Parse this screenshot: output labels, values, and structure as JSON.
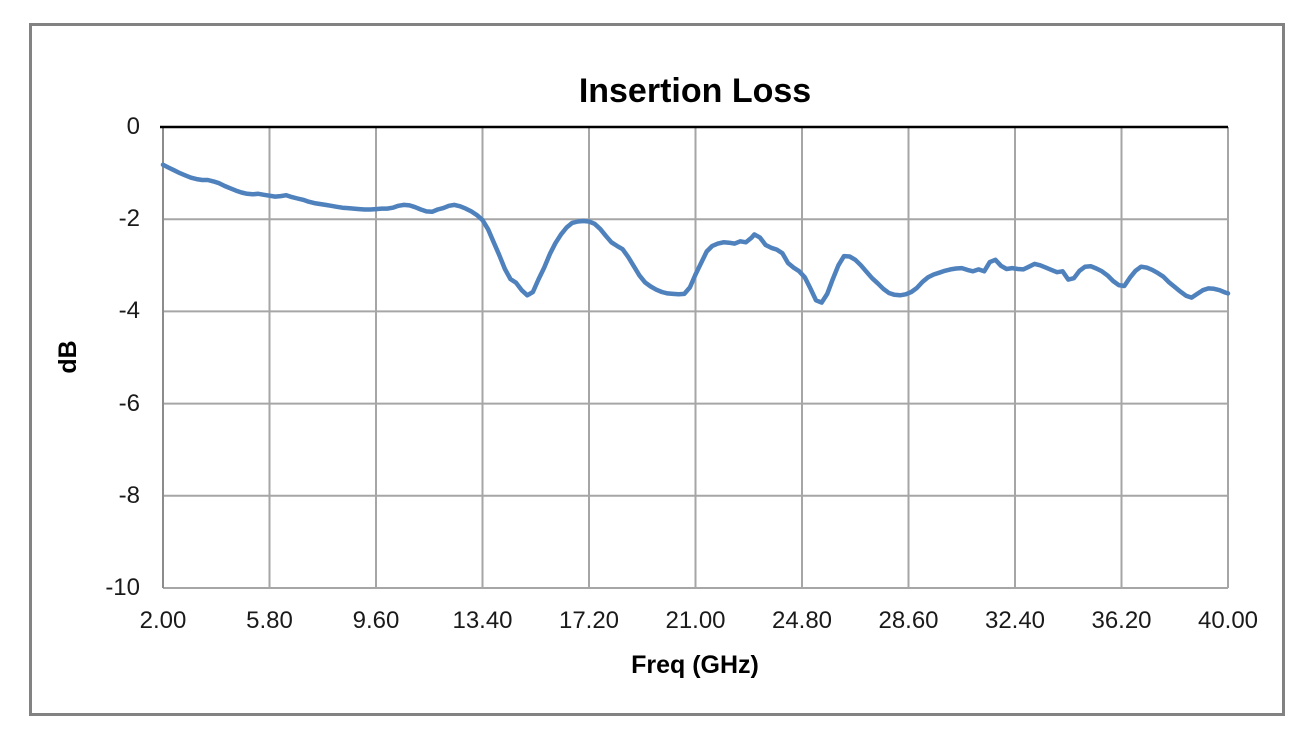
{
  "colors": {
    "line": "#4F81BD",
    "gridline": "#A6A6A6",
    "axis": "#8C8C8C",
    "zero_line": "#000000",
    "frame_border": "#828282",
    "text": "#1a1a1a"
  },
  "chart_data": {
    "type": "line",
    "title": "Insertion Loss",
    "xlabel": "Freq (GHz)",
    "ylabel": "dB",
    "xlim": [
      2,
      40
    ],
    "ylim": [
      -10,
      0
    ],
    "grid": true,
    "legend": "none",
    "x_tick_values": [
      2,
      5.8,
      9.6,
      13.4,
      17.2,
      21,
      24.8,
      28.6,
      32.4,
      36.2,
      40
    ],
    "x_tick_labels": [
      "2.00",
      "5.80",
      "9.60",
      "13.40",
      "17.20",
      "21.00",
      "24.80",
      "28.60",
      "32.40",
      "36.20",
      "40.00"
    ],
    "y_tick_values": [
      0,
      -2,
      -4,
      -6,
      -8,
      -10
    ],
    "y_tick_labels": [
      "0",
      "-2",
      "-4",
      "-6",
      "-8",
      "-10"
    ],
    "series": [
      {
        "color": "#4F81BD",
        "points": [
          [
            2.0,
            -0.82
          ],
          [
            2.2,
            -0.88
          ],
          [
            2.4,
            -0.94
          ],
          [
            2.6,
            -1.0
          ],
          [
            2.8,
            -1.05
          ],
          [
            3.0,
            -1.1
          ],
          [
            3.2,
            -1.13
          ],
          [
            3.4,
            -1.15
          ],
          [
            3.6,
            -1.15
          ],
          [
            3.8,
            -1.18
          ],
          [
            4.0,
            -1.22
          ],
          [
            4.2,
            -1.28
          ],
          [
            4.4,
            -1.33
          ],
          [
            4.6,
            -1.38
          ],
          [
            4.8,
            -1.42
          ],
          [
            5.0,
            -1.45
          ],
          [
            5.2,
            -1.46
          ],
          [
            5.4,
            -1.45
          ],
          [
            5.6,
            -1.47
          ],
          [
            5.8,
            -1.49
          ],
          [
            6.0,
            -1.51
          ],
          [
            6.2,
            -1.5
          ],
          [
            6.4,
            -1.48
          ],
          [
            6.6,
            -1.52
          ],
          [
            6.8,
            -1.55
          ],
          [
            7.0,
            -1.58
          ],
          [
            7.2,
            -1.62
          ],
          [
            7.4,
            -1.65
          ],
          [
            7.6,
            -1.67
          ],
          [
            7.8,
            -1.69
          ],
          [
            8.0,
            -1.71
          ],
          [
            8.2,
            -1.73
          ],
          [
            8.4,
            -1.75
          ],
          [
            8.6,
            -1.76
          ],
          [
            8.8,
            -1.77
          ],
          [
            9.0,
            -1.78
          ],
          [
            9.2,
            -1.79
          ],
          [
            9.4,
            -1.79
          ],
          [
            9.6,
            -1.78
          ],
          [
            9.8,
            -1.77
          ],
          [
            10.0,
            -1.77
          ],
          [
            10.2,
            -1.75
          ],
          [
            10.4,
            -1.71
          ],
          [
            10.6,
            -1.69
          ],
          [
            10.8,
            -1.7
          ],
          [
            11.0,
            -1.74
          ],
          [
            11.2,
            -1.79
          ],
          [
            11.4,
            -1.83
          ],
          [
            11.6,
            -1.84
          ],
          [
            11.8,
            -1.79
          ],
          [
            12.0,
            -1.76
          ],
          [
            12.2,
            -1.71
          ],
          [
            12.4,
            -1.69
          ],
          [
            12.6,
            -1.72
          ],
          [
            12.8,
            -1.77
          ],
          [
            13.0,
            -1.83
          ],
          [
            13.2,
            -1.91
          ],
          [
            13.4,
            -2.02
          ],
          [
            13.6,
            -2.22
          ],
          [
            13.8,
            -2.5
          ],
          [
            14.0,
            -2.78
          ],
          [
            14.2,
            -3.08
          ],
          [
            14.4,
            -3.3
          ],
          [
            14.6,
            -3.38
          ],
          [
            14.8,
            -3.54
          ],
          [
            15.0,
            -3.65
          ],
          [
            15.2,
            -3.58
          ],
          [
            15.4,
            -3.3
          ],
          [
            15.6,
            -3.05
          ],
          [
            15.8,
            -2.76
          ],
          [
            16.0,
            -2.52
          ],
          [
            16.2,
            -2.33
          ],
          [
            16.4,
            -2.18
          ],
          [
            16.6,
            -2.08
          ],
          [
            16.8,
            -2.05
          ],
          [
            17.0,
            -2.04
          ],
          [
            17.2,
            -2.05
          ],
          [
            17.4,
            -2.1
          ],
          [
            17.6,
            -2.21
          ],
          [
            17.8,
            -2.36
          ],
          [
            18.0,
            -2.5
          ],
          [
            18.2,
            -2.58
          ],
          [
            18.4,
            -2.65
          ],
          [
            18.6,
            -2.82
          ],
          [
            18.8,
            -3.02
          ],
          [
            19.0,
            -3.22
          ],
          [
            19.2,
            -3.37
          ],
          [
            19.4,
            -3.46
          ],
          [
            19.6,
            -3.53
          ],
          [
            19.8,
            -3.58
          ],
          [
            20.0,
            -3.61
          ],
          [
            20.2,
            -3.62
          ],
          [
            20.4,
            -3.63
          ],
          [
            20.6,
            -3.62
          ],
          [
            20.8,
            -3.48
          ],
          [
            21.0,
            -3.2
          ],
          [
            21.2,
            -2.95
          ],
          [
            21.4,
            -2.7
          ],
          [
            21.6,
            -2.58
          ],
          [
            21.8,
            -2.53
          ],
          [
            22.0,
            -2.5
          ],
          [
            22.2,
            -2.51
          ],
          [
            22.4,
            -2.53
          ],
          [
            22.6,
            -2.48
          ],
          [
            22.8,
            -2.5
          ],
          [
            23.0,
            -2.4
          ],
          [
            23.1,
            -2.33
          ],
          [
            23.3,
            -2.4
          ],
          [
            23.5,
            -2.56
          ],
          [
            23.7,
            -2.62
          ],
          [
            23.9,
            -2.66
          ],
          [
            24.1,
            -2.74
          ],
          [
            24.3,
            -2.95
          ],
          [
            24.5,
            -3.05
          ],
          [
            24.7,
            -3.13
          ],
          [
            24.9,
            -3.26
          ],
          [
            25.1,
            -3.5
          ],
          [
            25.3,
            -3.76
          ],
          [
            25.5,
            -3.81
          ],
          [
            25.7,
            -3.62
          ],
          [
            25.9,
            -3.3
          ],
          [
            26.1,
            -3.0
          ],
          [
            26.3,
            -2.8
          ],
          [
            26.5,
            -2.81
          ],
          [
            26.7,
            -2.88
          ],
          [
            26.9,
            -3.0
          ],
          [
            27.1,
            -3.14
          ],
          [
            27.3,
            -3.28
          ],
          [
            27.5,
            -3.39
          ],
          [
            27.7,
            -3.51
          ],
          [
            27.9,
            -3.6
          ],
          [
            28.1,
            -3.64
          ],
          [
            28.3,
            -3.65
          ],
          [
            28.5,
            -3.63
          ],
          [
            28.7,
            -3.58
          ],
          [
            28.9,
            -3.49
          ],
          [
            29.1,
            -3.36
          ],
          [
            29.3,
            -3.26
          ],
          [
            29.5,
            -3.2
          ],
          [
            29.7,
            -3.16
          ],
          [
            29.9,
            -3.12
          ],
          [
            30.1,
            -3.09
          ],
          [
            30.3,
            -3.07
          ],
          [
            30.5,
            -3.06
          ],
          [
            30.7,
            -3.1
          ],
          [
            30.9,
            -3.13
          ],
          [
            31.1,
            -3.09
          ],
          [
            31.3,
            -3.13
          ],
          [
            31.5,
            -2.93
          ],
          [
            31.7,
            -2.88
          ],
          [
            31.9,
            -3.01
          ],
          [
            32.1,
            -3.08
          ],
          [
            32.3,
            -3.06
          ],
          [
            32.5,
            -3.08
          ],
          [
            32.7,
            -3.09
          ],
          [
            32.9,
            -3.03
          ],
          [
            33.1,
            -2.97
          ],
          [
            33.3,
            -3.0
          ],
          [
            33.5,
            -3.05
          ],
          [
            33.7,
            -3.1
          ],
          [
            33.9,
            -3.15
          ],
          [
            34.1,
            -3.13
          ],
          [
            34.3,
            -3.31
          ],
          [
            34.5,
            -3.28
          ],
          [
            34.7,
            -3.12
          ],
          [
            34.9,
            -3.03
          ],
          [
            35.1,
            -3.02
          ],
          [
            35.3,
            -3.07
          ],
          [
            35.5,
            -3.13
          ],
          [
            35.7,
            -3.22
          ],
          [
            35.9,
            -3.34
          ],
          [
            36.1,
            -3.43
          ],
          [
            36.3,
            -3.45
          ],
          [
            36.5,
            -3.27
          ],
          [
            36.7,
            -3.12
          ],
          [
            36.9,
            -3.03
          ],
          [
            37.1,
            -3.05
          ],
          [
            37.3,
            -3.1
          ],
          [
            37.5,
            -3.17
          ],
          [
            37.7,
            -3.25
          ],
          [
            37.9,
            -3.37
          ],
          [
            38.1,
            -3.47
          ],
          [
            38.3,
            -3.57
          ],
          [
            38.5,
            -3.66
          ],
          [
            38.7,
            -3.7
          ],
          [
            38.9,
            -3.62
          ],
          [
            39.1,
            -3.54
          ],
          [
            39.3,
            -3.5
          ],
          [
            39.5,
            -3.51
          ],
          [
            39.7,
            -3.54
          ],
          [
            39.9,
            -3.59
          ],
          [
            40.0,
            -3.61
          ]
        ]
      }
    ]
  }
}
